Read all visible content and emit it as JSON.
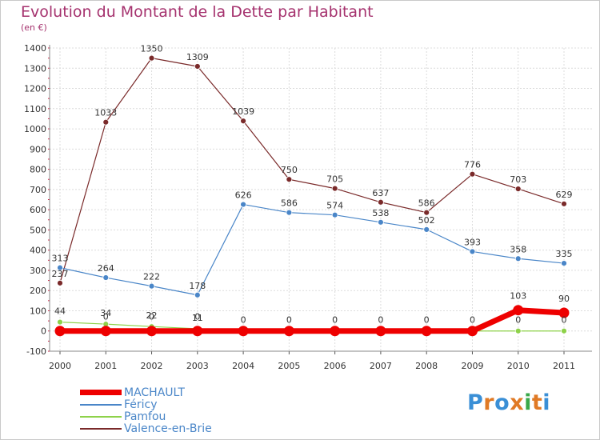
{
  "title": "Evolution du Montant de la Dette par Habitant",
  "subtitle": "(en €)",
  "logo": {
    "text": "Proxiti",
    "letter_colors": [
      "#3a8fd6",
      "#e07a25",
      "#3a8fd6",
      "#e07a25",
      "#3aa84a",
      "#e07a25",
      "#3a8fd6"
    ]
  },
  "chart_data": {
    "type": "line",
    "x": [
      "2000",
      "2001",
      "2002",
      "2003",
      "2004",
      "2005",
      "2006",
      "2007",
      "2008",
      "2009",
      "2010",
      "2011"
    ],
    "ylim": [
      -100,
      1400
    ],
    "yticks": [
      "-100",
      "0",
      "100",
      "200",
      "300",
      "400",
      "500",
      "600",
      "700",
      "800",
      "900",
      "1000",
      "1100",
      "1200",
      "1300",
      "1400"
    ],
    "grid": true,
    "legend_position": "bottom-left",
    "series": [
      {
        "name": "MACHAULT",
        "color": "#ee0000",
        "values": [
          0,
          0,
          0,
          0,
          0,
          0,
          0,
          0,
          0,
          0,
          103,
          90
        ],
        "labels": [
          "",
          "0",
          "0",
          "0",
          "",
          "",
          "",
          "",
          "",
          "",
          "103",
          "90"
        ]
      },
      {
        "name": "Féricy",
        "color": "#4a86c8",
        "values": [
          313,
          264,
          222,
          178,
          626,
          586,
          574,
          538,
          502,
          393,
          358,
          335
        ],
        "labels": [
          "313",
          "264",
          "222",
          "178",
          "626",
          "586",
          "574",
          "538",
          "502",
          "393",
          "358",
          "335"
        ]
      },
      {
        "name": "Pamfou",
        "color": "#8ed24a",
        "values": [
          44,
          34,
          22,
          11,
          0,
          0,
          0,
          0,
          0,
          0,
          0,
          0
        ],
        "labels": [
          "44",
          "34",
          "22",
          "11",
          "0",
          "0",
          "0",
          "0",
          "0",
          "0",
          "0",
          "0"
        ]
      },
      {
        "name": "Valence-en-Brie",
        "color": "#7a2a2a",
        "values": [
          237,
          1033,
          1350,
          1309,
          1039,
          750,
          705,
          637,
          586,
          776,
          703,
          629
        ],
        "labels": [
          "237",
          "1033",
          "1350",
          "1309",
          "1039",
          "750",
          "705",
          "637",
          "586",
          "776",
          "703",
          "629"
        ]
      }
    ]
  }
}
